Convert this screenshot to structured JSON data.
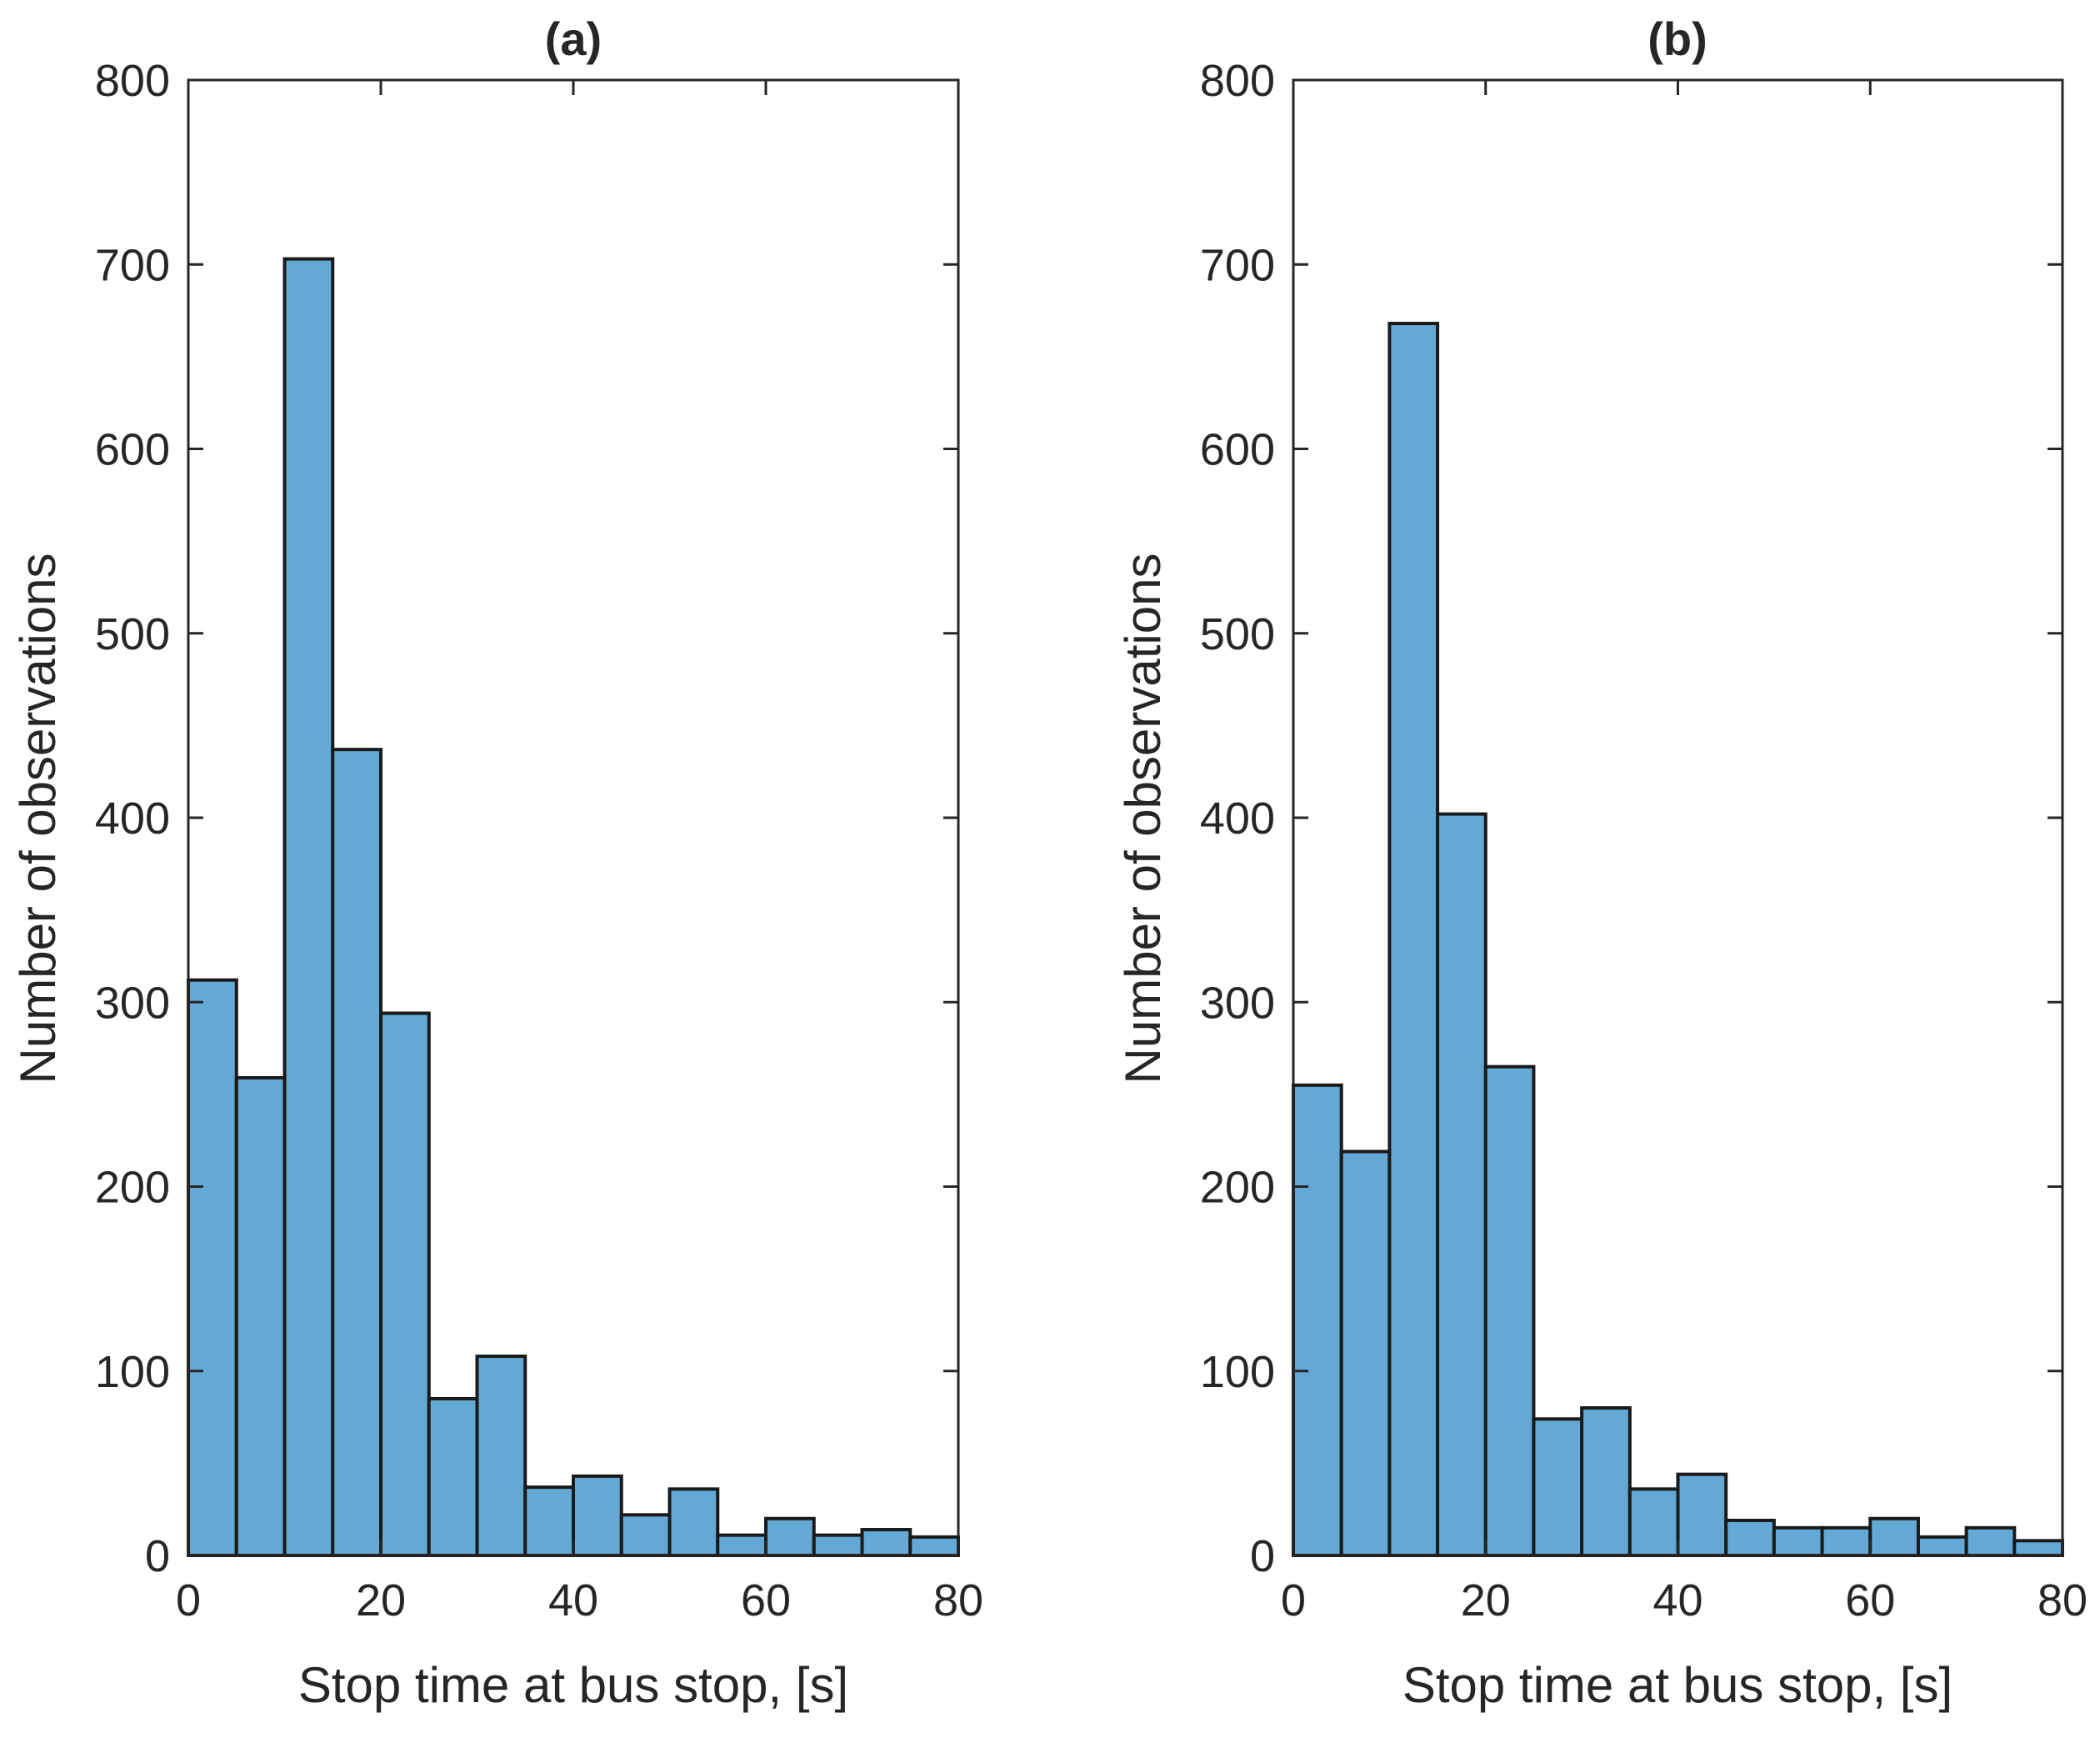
{
  "chart_data": [
    {
      "id": "a",
      "type": "bar",
      "subtype": "histogram",
      "title": "(a)",
      "xlabel": "Stop time at bus stop, [s]",
      "ylabel": "Number of observations",
      "xlim": [
        0,
        80
      ],
      "ylim": [
        0,
        800
      ],
      "xticks": [
        0,
        20,
        40,
        60,
        80
      ],
      "yticks": [
        0,
        100,
        200,
        300,
        400,
        500,
        600,
        700,
        800
      ],
      "bin_width": 5,
      "bin_edges": [
        0,
        5,
        10,
        15,
        20,
        25,
        30,
        35,
        40,
        45,
        50,
        55,
        60,
        65,
        70,
        75,
        80
      ],
      "values": [
        312,
        259,
        703,
        437,
        294,
        85,
        108,
        37,
        43,
        22,
        36,
        11,
        20,
        11,
        14,
        10
      ],
      "bar_color": "#64a9d6",
      "edge_color": "#1a1a1a"
    },
    {
      "id": "b",
      "type": "bar",
      "subtype": "histogram",
      "title": "(b)",
      "xlabel": "Stop time at bus stop, [s]",
      "ylabel": "Number of observations",
      "xlim": [
        0,
        80
      ],
      "ylim": [
        0,
        800
      ],
      "xticks": [
        0,
        20,
        40,
        60,
        80
      ],
      "yticks": [
        0,
        100,
        200,
        300,
        400,
        500,
        600,
        700,
        800
      ],
      "bin_width": 5,
      "bin_edges": [
        0,
        5,
        10,
        15,
        20,
        25,
        30,
        35,
        40,
        45,
        50,
        55,
        60,
        65,
        70,
        75,
        80
      ],
      "values": [
        255,
        219,
        668,
        402,
        265,
        74,
        80,
        36,
        44,
        19,
        15,
        15,
        20,
        10,
        15,
        8
      ],
      "bar_color": "#64a9d6",
      "edge_color": "#1a1a1a"
    }
  ]
}
